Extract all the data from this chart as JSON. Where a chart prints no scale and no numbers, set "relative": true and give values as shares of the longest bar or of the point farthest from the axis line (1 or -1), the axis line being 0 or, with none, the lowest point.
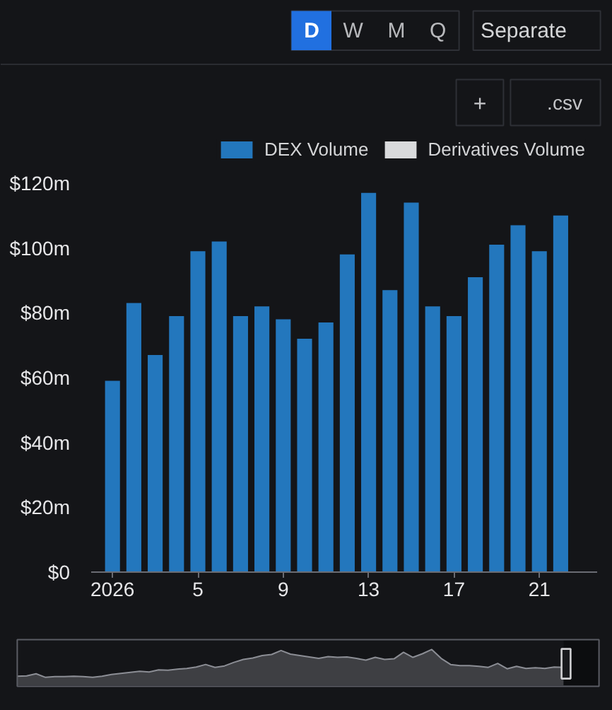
{
  "chart_data": [
    {
      "type": "bar",
      "legend": "top right",
      "annotations": [
        "D",
        "W",
        "M",
        "Q",
        "Separate",
        "+",
        ".csv"
      ],
      "x": [
        "2026-01-01",
        "2026-01-02",
        "2026-01-03",
        "2026-01-04",
        "2026-01-05",
        "2026-01-06",
        "2026-01-07",
        "2026-01-08",
        "2026-01-09",
        "2026-01-10",
        "2026-01-11",
        "2026-01-12",
        "2026-01-13",
        "2026-01-14",
        "2026-01-15",
        "2026-01-16",
        "2026-01-17",
        "2026-01-18",
        "2026-01-19",
        "2026-01-20",
        "2026-01-21",
        "2026-01-22"
      ],
      "series": [
        {
          "name": "DEX Volume",
          "color": "#2377bd",
          "values": [
            59,
            83,
            67,
            79,
            99,
            102,
            79,
            82,
            78,
            72,
            77,
            98,
            117,
            87,
            114,
            82,
            79,
            91,
            101,
            107,
            99,
            110
          ]
        },
        {
          "name": "Derivatives Volume",
          "color": "#d9dadc",
          "values": [
            null,
            null,
            null,
            null,
            null,
            null,
            null,
            null,
            null,
            null,
            null,
            null,
            null,
            null,
            null,
            null,
            null,
            null,
            null,
            null,
            null,
            null
          ]
        }
      ],
      "xlim": [
        "2025-12-31",
        "2026-01-23T17:00"
      ],
      "xticks": [
        {
          "value": "2026-01-01",
          "label": "2026"
        },
        {
          "value": "2026-01-05",
          "label": "5"
        },
        {
          "value": "2026-01-09",
          "label": "9"
        },
        {
          "value": "2026-01-13",
          "label": "13"
        },
        {
          "value": "2026-01-17",
          "label": "17"
        },
        {
          "value": "2026-01-21",
          "label": "21"
        }
      ],
      "ylim": [
        0,
        120
      ],
      "yticks": [
        {
          "value": 0,
          "label": "$0"
        },
        {
          "value": 20,
          "label": "$20m"
        },
        {
          "value": 40,
          "label": "$40m"
        },
        {
          "value": 60,
          "label": "$60m"
        },
        {
          "value": 80,
          "label": "$80m"
        },
        {
          "value": 100,
          "label": "$100m"
        },
        {
          "value": 120,
          "label": "$120m"
        }
      ]
    },
    {
      "type": "area",
      "relative": true,
      "color": "#8c8e95",
      "categories": [
        null,
        null,
        null,
        null,
        null,
        null,
        null,
        null,
        null,
        null,
        null,
        null,
        null,
        null,
        null,
        null,
        null,
        null,
        null,
        null,
        null,
        null,
        null,
        null,
        null,
        null,
        null,
        null,
        null,
        null,
        null,
        null,
        null,
        null,
        null,
        null,
        null,
        null,
        null,
        null,
        null,
        null,
        null,
        null,
        null,
        null,
        null,
        null,
        null,
        null,
        null,
        null,
        null,
        null,
        null,
        null,
        null,
        null,
        null
      ],
      "values": [
        0.25,
        0.26,
        0.32,
        0.22,
        0.24,
        0.24,
        0.25,
        0.24,
        0.22,
        0.25,
        0.3,
        0.33,
        0.36,
        0.39,
        0.37,
        0.43,
        0.42,
        0.45,
        0.47,
        0.51,
        0.58,
        0.5,
        0.54,
        0.64,
        0.72,
        0.76,
        0.83,
        0.86,
        0.97,
        0.87,
        0.83,
        0.79,
        0.75,
        0.8,
        0.78,
        0.79,
        0.75,
        0.7,
        0.78,
        0.72,
        0.74,
        0.92,
        0.78,
        0.88,
        1,
        0.75,
        0.58,
        0.55,
        0.55,
        0.53,
        0.5,
        0.61,
        0.46,
        0.53,
        0.47,
        0.49,
        0.47,
        0.51,
        0.5
      ]
    }
  ]
}
